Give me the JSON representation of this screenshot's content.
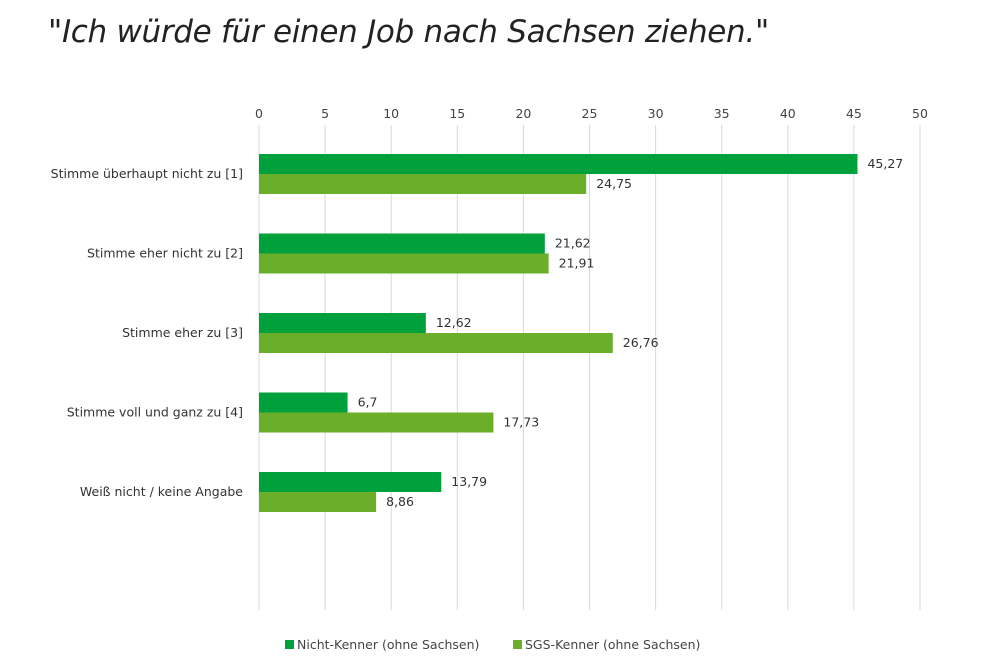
{
  "chart_data": {
    "type": "bar",
    "orientation": "horizontal",
    "title": "\"Ich würde für einen Job nach Sachsen ziehen.\"",
    "xlabel": "",
    "ylabel": "",
    "xlim": [
      0,
      50
    ],
    "x_ticks": [
      "0",
      "5",
      "10",
      "15",
      "20",
      "25",
      "30",
      "35",
      "40",
      "45",
      "50"
    ],
    "x_axis_position": "top",
    "grid": true,
    "legend_position": "bottom",
    "categories": [
      "Stimme überhaupt nicht zu [1]",
      "Stimme eher nicht zu [2]",
      "Stimme eher zu [3]",
      "Stimme voll und ganz zu [4]",
      "Weiß nicht / keine Angabe"
    ],
    "series": [
      {
        "name": "Nicht-Kenner (ohne Sachsen)",
        "color": "#00a03c",
        "values": [
          45.27,
          21.62,
          12.62,
          6.7,
          13.79
        ],
        "labels": [
          "45,27",
          "21,62",
          "12,62",
          "6,7",
          "13,79"
        ]
      },
      {
        "name": "SGS-Kenner (ohne Sachsen)",
        "color": "#6aae2a",
        "values": [
          24.75,
          21.91,
          26.76,
          17.73,
          8.86
        ],
        "labels": [
          "24,75",
          "21,91",
          "26,76",
          "17,73",
          "8,86"
        ]
      }
    ]
  }
}
